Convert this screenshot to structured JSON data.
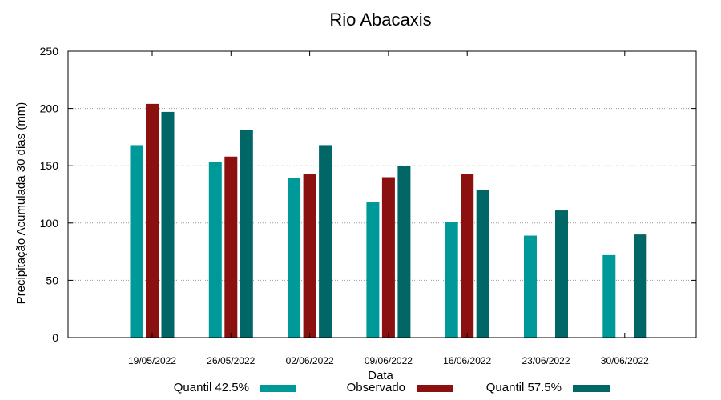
{
  "chart_data": {
    "type": "bar",
    "title": "Rio Abacaxis",
    "xlabel": "Data",
    "ylabel": "Precipitação Acumulada 30 dias (mm)",
    "ylim": [
      0,
      250
    ],
    "yticks": [
      0,
      50,
      100,
      150,
      200,
      250
    ],
    "grid": true,
    "legend_position": "bottom",
    "categories": [
      "19/05/2022",
      "26/05/2022",
      "02/06/2022",
      "09/06/2022",
      "16/06/2022",
      "23/06/2022",
      "30/06/2022"
    ],
    "series": [
      {
        "name": "Quantil 42.5%",
        "color": "#009999",
        "values": [
          168,
          153,
          139,
          118,
          101,
          89,
          72
        ]
      },
      {
        "name": "Observado",
        "color": "#8b1010",
        "values": [
          204,
          158,
          143,
          140,
          143,
          null,
          null
        ]
      },
      {
        "name": "Quantil 57.5%",
        "color": "#006666",
        "values": [
          197,
          181,
          168,
          150,
          129,
          111,
          90
        ]
      }
    ]
  }
}
